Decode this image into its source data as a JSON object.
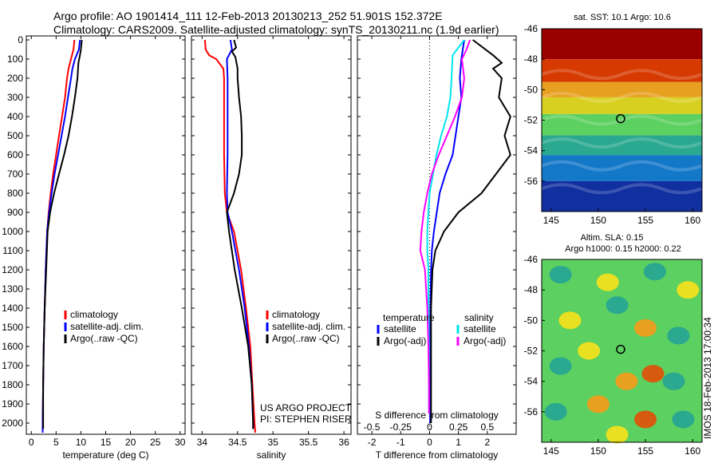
{
  "header": {
    "line1": "Argo profile: AO 1901414_111 12-Feb-2013 20130213_252 51.901S 152.372E",
    "line2": "Climatology: CARS2009. Satellite-adjusted climatology: synTS_20130211.nc (1.9d earlier)"
  },
  "side_label": "IMOS 18-Feb-2013 17:00:34",
  "colors": {
    "climatology": "#ff0000",
    "satellite": "#0000ff",
    "argo": "#000000",
    "sal_satellite": "#00e5ee",
    "sal_argo": "#ff00ff"
  },
  "chart_data": [
    {
      "type": "line",
      "title": "",
      "xlabel": "temperature (deg C)",
      "ylabel": "",
      "xlim": [
        -1,
        31
      ],
      "ylim": [
        2050,
        0
      ],
      "xticks": [
        0,
        5,
        10,
        15,
        20,
        25,
        30
      ],
      "yticks": [
        0,
        100,
        200,
        300,
        400,
        500,
        600,
        700,
        800,
        900,
        1000,
        1100,
        1200,
        1300,
        1400,
        1500,
        1600,
        1700,
        1800,
        1900,
        2000
      ],
      "legend": [
        "climatology",
        "satellite-adj. clim.",
        "Argo(..raw -QC)"
      ],
      "series": [
        {
          "name": "climatology",
          "color": "#ff0000",
          "points": [
            [
              8.7,
              0
            ],
            [
              8.5,
              50
            ],
            [
              8.0,
              100
            ],
            [
              7.5,
              150
            ],
            [
              7.2,
              200
            ],
            [
              6.8,
              300
            ],
            [
              6.2,
              400
            ],
            [
              5.6,
              500
            ],
            [
              5.0,
              600
            ],
            [
              4.4,
              700
            ],
            [
              3.9,
              800
            ],
            [
              3.5,
              900
            ],
            [
              3.2,
              1000
            ],
            [
              2.9,
              1200
            ],
            [
              2.7,
              1400
            ],
            [
              2.5,
              1600
            ],
            [
              2.4,
              1800
            ],
            [
              2.3,
              2000
            ],
            [
              2.3,
              2050
            ]
          ]
        },
        {
          "name": "satellite-adj. clim.",
          "color": "#0000ff",
          "points": [
            [
              9.8,
              0
            ],
            [
              9.6,
              50
            ],
            [
              8.8,
              100
            ],
            [
              8.3,
              150
            ],
            [
              8.0,
              200
            ],
            [
              7.4,
              300
            ],
            [
              6.8,
              400
            ],
            [
              6.1,
              500
            ],
            [
              5.4,
              600
            ],
            [
              4.7,
              700
            ],
            [
              4.1,
              800
            ],
            [
              3.6,
              900
            ],
            [
              3.2,
              1000
            ],
            [
              2.9,
              1200
            ],
            [
              2.7,
              1400
            ],
            [
              2.5,
              1600
            ],
            [
              2.4,
              1800
            ],
            [
              2.3,
              2000
            ],
            [
              2.3,
              2050
            ]
          ]
        },
        {
          "name": "Argo(..raw -QC)",
          "color": "#000000",
          "points": [
            [
              10.2,
              0
            ],
            [
              10.0,
              50
            ],
            [
              9.8,
              80
            ],
            [
              9.5,
              120
            ],
            [
              9.3,
              200
            ],
            [
              8.8,
              300
            ],
            [
              8.2,
              400
            ],
            [
              7.5,
              500
            ],
            [
              6.6,
              600
            ],
            [
              5.6,
              700
            ],
            [
              4.6,
              800
            ],
            [
              3.8,
              900
            ],
            [
              3.3,
              1000
            ],
            [
              3.0,
              1200
            ],
            [
              2.7,
              1400
            ],
            [
              2.5,
              1600
            ],
            [
              2.4,
              1800
            ],
            [
              2.4,
              2000
            ],
            [
              2.4,
              2030
            ]
          ]
        }
      ]
    },
    {
      "type": "line",
      "title": "",
      "xlabel": "salinity",
      "ylabel": "",
      "xlim": [
        33.85,
        36.1
      ],
      "ylim": [
        2050,
        0
      ],
      "xticks": [
        34,
        34.5,
        35,
        35.5,
        36
      ],
      "legend": [
        "climatology",
        "satellite-adj. clim.",
        "Argo(..raw -QC)"
      ],
      "annotation": [
        "US ARGO PROJECT",
        "PI: STEPHEN RISER"
      ],
      "series": [
        {
          "name": "climatology",
          "color": "#ff0000",
          "points": [
            [
              34.04,
              0
            ],
            [
              34.05,
              50
            ],
            [
              34.1,
              80
            ],
            [
              34.2,
              100
            ],
            [
              34.3,
              150
            ],
            [
              34.31,
              200
            ],
            [
              34.31,
              400
            ],
            [
              34.31,
              600
            ],
            [
              34.32,
              800
            ],
            [
              34.35,
              900
            ],
            [
              34.45,
              1000
            ],
            [
              34.55,
              1200
            ],
            [
              34.62,
              1400
            ],
            [
              34.68,
              1600
            ],
            [
              34.71,
              1800
            ],
            [
              34.74,
              2000
            ],
            [
              34.75,
              2050
            ]
          ]
        },
        {
          "name": "satellite-adj. clim.",
          "color": "#0000ff",
          "points": [
            [
              34.4,
              0
            ],
            [
              34.42,
              50
            ],
            [
              34.35,
              100
            ],
            [
              34.36,
              200
            ],
            [
              34.36,
              300
            ],
            [
              34.36,
              400
            ],
            [
              34.36,
              600
            ],
            [
              34.35,
              800
            ],
            [
              34.36,
              900
            ],
            [
              34.42,
              1000
            ],
            [
              34.52,
              1200
            ],
            [
              34.6,
              1400
            ],
            [
              34.66,
              1600
            ],
            [
              34.7,
              1800
            ],
            [
              34.72,
              2000
            ],
            [
              34.72,
              2030
            ]
          ]
        },
        {
          "name": "Argo(..raw -QC)",
          "color": "#000000",
          "points": [
            [
              34.45,
              0
            ],
            [
              34.48,
              40
            ],
            [
              34.42,
              60
            ],
            [
              34.47,
              90
            ],
            [
              34.5,
              150
            ],
            [
              34.5,
              200
            ],
            [
              34.52,
              300
            ],
            [
              34.55,
              400
            ],
            [
              34.56,
              500
            ],
            [
              34.56,
              600
            ],
            [
              34.52,
              700
            ],
            [
              34.45,
              800
            ],
            [
              34.35,
              900
            ],
            [
              34.38,
              1000
            ],
            [
              34.46,
              1200
            ],
            [
              34.56,
              1400
            ],
            [
              34.65,
              1600
            ],
            [
              34.7,
              1800
            ],
            [
              34.72,
              2000
            ],
            [
              34.72,
              2030
            ]
          ]
        }
      ]
    },
    {
      "type": "line",
      "title": "",
      "xlabel": "T difference from climatology",
      "xlabel_top": "S difference from climatology",
      "ylabel": "",
      "xlim": [
        -2.5,
        3
      ],
      "ylim": [
        2050,
        0
      ],
      "xticks": [
        -2,
        -1,
        0,
        1,
        2
      ],
      "xticks_top": [
        -0.5,
        -0.25,
        0,
        0.25,
        0.5
      ],
      "legend_temperature": [
        "temperature",
        "satellite",
        "Argo(-adj)"
      ],
      "legend_salinity": [
        "salinity",
        "satellite",
        "Argo(-adj)"
      ],
      "series": [
        {
          "name": "temperature satellite",
          "color": "#0000ff",
          "points": [
            [
              1.2,
              0
            ],
            [
              1.1,
              100
            ],
            [
              1.05,
              200
            ],
            [
              1.1,
              300
            ],
            [
              1.0,
              400
            ],
            [
              0.9,
              500
            ],
            [
              0.8,
              600
            ],
            [
              0.55,
              700
            ],
            [
              0.35,
              800
            ],
            [
              0.25,
              900
            ],
            [
              0.15,
              1000
            ],
            [
              0.08,
              1100
            ],
            [
              0.05,
              1200
            ],
            [
              0.03,
              1400
            ],
            [
              0.02,
              1600
            ],
            [
              0.02,
              1800
            ],
            [
              0.02,
              2000
            ]
          ]
        },
        {
          "name": "temperature Argo(-adj)",
          "color": "#000000",
          "points": [
            [
              1.5,
              0
            ],
            [
              2.2,
              80
            ],
            [
              2.5,
              120
            ],
            [
              2.2,
              150
            ],
            [
              2.5,
              200
            ],
            [
              2.4,
              300
            ],
            [
              2.8,
              400
            ],
            [
              2.6,
              500
            ],
            [
              2.8,
              600
            ],
            [
              2.3,
              700
            ],
            [
              1.8,
              800
            ],
            [
              1.0,
              900
            ],
            [
              0.5,
              1000
            ],
            [
              0.2,
              1100
            ],
            [
              0.1,
              1200
            ],
            [
              0.05,
              1400
            ],
            [
              0.05,
              1600
            ],
            [
              0.05,
              1800
            ],
            [
              0.05,
              2000
            ]
          ]
        },
        {
          "name": "salinity satellite",
          "color": "#00e5ee",
          "points": [
            [
              0.3,
              0
            ],
            [
              0.2,
              80
            ],
            [
              0.19,
              200
            ],
            [
              0.18,
              300
            ],
            [
              0.15,
              400
            ],
            [
              0.1,
              500
            ],
            [
              0.06,
              600
            ],
            [
              0.03,
              700
            ],
            [
              0.0,
              800
            ],
            [
              -0.01,
              900
            ],
            [
              -0.02,
              1000
            ],
            [
              -0.02,
              1100
            ],
            [
              -0.01,
              1200
            ],
            [
              -0.01,
              1400
            ],
            [
              -0.005,
              1600
            ],
            [
              -0.005,
              1800
            ],
            [
              -0.005,
              1950
            ]
          ]
        },
        {
          "name": "salinity Argo(-adj)",
          "color": "#ff00ff",
          "points": [
            [
              0.35,
              0
            ],
            [
              0.32,
              50
            ],
            [
              0.28,
              100
            ],
            [
              0.3,
              200
            ],
            [
              0.28,
              300
            ],
            [
              0.22,
              400
            ],
            [
              0.15,
              500
            ],
            [
              0.08,
              600
            ],
            [
              0.02,
              700
            ],
            [
              -0.02,
              800
            ],
            [
              -0.05,
              900
            ],
            [
              -0.07,
              1000
            ],
            [
              -0.08,
              1100
            ],
            [
              -0.04,
              1200
            ],
            [
              -0.02,
              1400
            ],
            [
              -0.01,
              1600
            ],
            [
              -0.005,
              1800
            ],
            [
              -0.005,
              1950
            ]
          ]
        }
      ]
    },
    {
      "type": "heatmap",
      "title": "sat. SST: 10.1  Argo: 10.6",
      "xlim": [
        144,
        161
      ],
      "ylim": [
        -58,
        -46
      ],
      "xticks": [
        145,
        150,
        155,
        160
      ],
      "yticks": [
        -46,
        -48,
        -50,
        -52,
        -54,
        -56
      ],
      "marker": [
        152.37,
        -51.9
      ],
      "bands": [
        "#9b0000",
        "#d63a00",
        "#e8a020",
        "#d8d020",
        "#5cd060",
        "#2aa890",
        "#1478c8",
        "#1030a0"
      ]
    },
    {
      "type": "heatmap",
      "title": "Altim. SLA: 0.15",
      "subtitle": "Argo h1000: 0.15 h2000: 0.22",
      "xlim": [
        144,
        161
      ],
      "ylim": [
        -58,
        -46
      ],
      "xticks": [
        145,
        150,
        155,
        160
      ],
      "yticks": [
        -46,
        -48,
        -50,
        -52,
        -54,
        -56
      ],
      "marker": [
        152.37,
        -51.9
      ],
      "base_color": "#5cd060"
    }
  ]
}
